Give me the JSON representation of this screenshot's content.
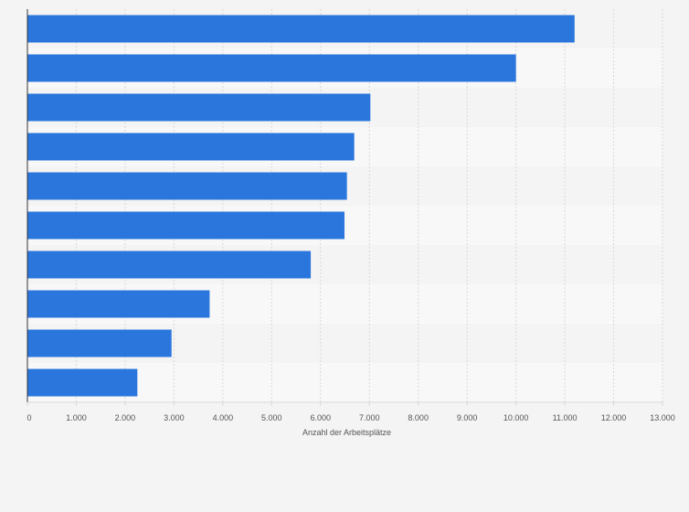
{
  "chart_data": {
    "type": "bar",
    "orientation": "horizontal",
    "categories": [
      "",
      "",
      "",
      "",
      "",
      "",
      "",
      "",
      "",
      ""
    ],
    "values": [
      11200,
      10000,
      7020,
      6690,
      6540,
      6490,
      5800,
      3730,
      2950,
      2250
    ],
    "xlabel": "Anzahl der Arbeitsplätze",
    "ylabel": "",
    "xlim": [
      0,
      13000
    ],
    "x_ticks": [
      {
        "value": 0,
        "label": "0"
      },
      {
        "value": 1000,
        "label": "1.000"
      },
      {
        "value": 2000,
        "label": "2.000"
      },
      {
        "value": 3000,
        "label": "3.000"
      },
      {
        "value": 4000,
        "label": "4.000"
      },
      {
        "value": 5000,
        "label": "5.000"
      },
      {
        "value": 6000,
        "label": "6.000"
      },
      {
        "value": 7000,
        "label": "7.000"
      },
      {
        "value": 8000,
        "label": "8.000"
      },
      {
        "value": 9000,
        "label": "9.000"
      },
      {
        "value": 10000,
        "label": "10.000"
      },
      {
        "value": 11000,
        "label": "11.000"
      },
      {
        "value": 12000,
        "label": "12.000"
      },
      {
        "value": 13000,
        "label": "13.000"
      }
    ],
    "grid": true,
    "colors": {
      "bar": "#2a76dd",
      "background": "#f4f4f4",
      "band_light": "#f8f8f8",
      "band_dark": "#f4f4f4",
      "gridline": "#d9d9d9",
      "axis": "#333333"
    }
  }
}
